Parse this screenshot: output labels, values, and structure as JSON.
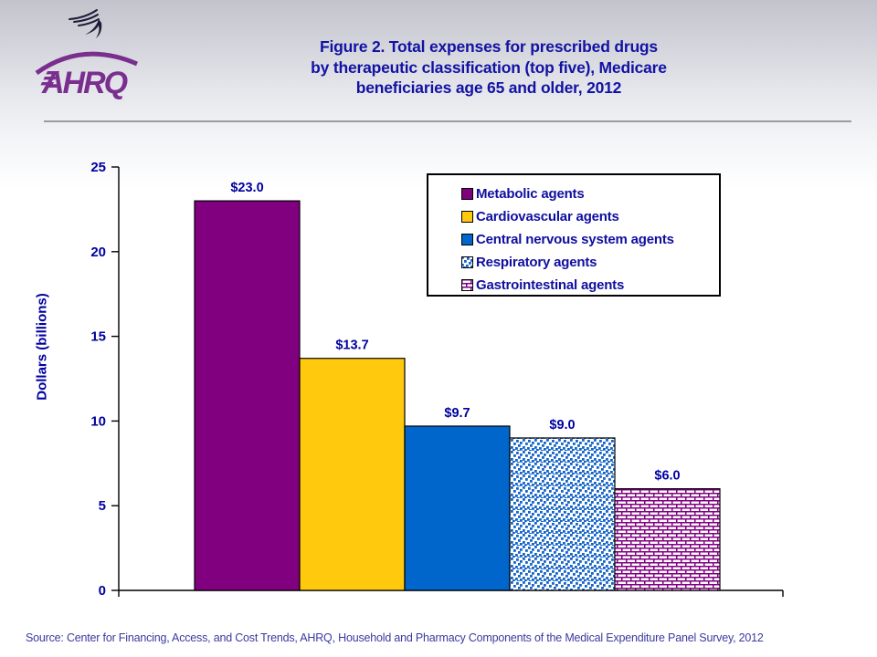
{
  "header": {
    "logo_org": "AHRQ",
    "title_lines": [
      "Figure 2. Total expenses for prescribed drugs",
      "by therapeutic classification (top five), Medicare",
      "beneficiaries age 65 and older, 2012"
    ]
  },
  "footer": {
    "source": "Source: Center for Financing, Access, and Cost Trends, AHRQ, Household and Pharmacy Components of the Medical Expenditure Panel Survey, 2012"
  },
  "colors": {
    "title_text": "#1212a4",
    "chart_text": "#0000a0",
    "logo_purple": "#7a2e8e",
    "eagle_dark": "#1c1c38",
    "axis": "#000000",
    "divider": "#9a9aa0",
    "legend_border": "#000000"
  },
  "chart_data": {
    "type": "bar",
    "title": "",
    "xlabel": "",
    "ylabel": "Dollars (billions)",
    "ylim": [
      0,
      25
    ],
    "yticks": [
      0,
      5,
      10,
      15,
      20,
      25
    ],
    "grid": false,
    "legend_position": "top-right inside plot",
    "categories": [
      "Metabolic agents",
      "Cardiovascular agents",
      "Central nervous system agents",
      "Respiratory agents",
      "Gastrointestinal agents"
    ],
    "values": [
      23.0,
      13.7,
      9.7,
      9.0,
      6.0
    ],
    "bars": [
      {
        "label": "Metabolic agents",
        "value": 23.0,
        "value_label": "$23.0",
        "fill": "#800080",
        "pattern": "solid"
      },
      {
        "label": "Cardiovascular agents",
        "value": 13.7,
        "value_label": "$13.7",
        "fill": "#ffc90e",
        "pattern": "solid"
      },
      {
        "label": "Central nervous system agents",
        "value": 9.7,
        "value_label": "$9.7",
        "fill": "#0066cc",
        "pattern": "solid"
      },
      {
        "label": "Respiratory agents",
        "value": 9.0,
        "value_label": "$9.0",
        "fill": "#1464c8",
        "pattern": "dots"
      },
      {
        "label": "Gastrointestinal agents",
        "value": 6.0,
        "value_label": "$6.0",
        "fill": "#800080",
        "pattern": "bricks"
      }
    ]
  }
}
